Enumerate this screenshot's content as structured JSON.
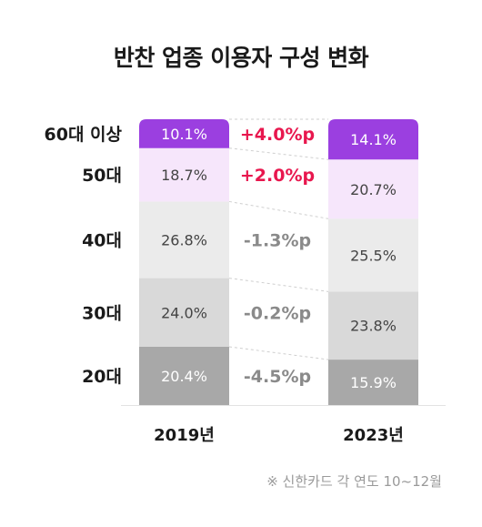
{
  "chart_data": {
    "type": "bar",
    "stacked": true,
    "title": "반찬 업종 이용자 구성 변화",
    "categories": [
      "2019년",
      "2023년"
    ],
    "series": [
      {
        "name": "20대",
        "values": [
          20.4,
          15.9
        ],
        "labels": [
          "20.4%",
          "15.9%"
        ],
        "change": "-4.5%p",
        "color": "#a8a8a8",
        "label_color": "#ffffff",
        "change_color": "#8a8a8a"
      },
      {
        "name": "30대",
        "values": [
          24.0,
          23.8
        ],
        "labels": [
          "24.0%",
          "23.8%"
        ],
        "change": "-0.2%p",
        "color": "#d9d9d9",
        "label_color": "#444444",
        "change_color": "#8a8a8a"
      },
      {
        "name": "40대",
        "values": [
          26.8,
          25.5
        ],
        "labels": [
          "26.8%",
          "25.5%"
        ],
        "change": "-1.3%p",
        "color": "#ebebeb",
        "label_color": "#444444",
        "change_color": "#8a8a8a"
      },
      {
        "name": "50대",
        "values": [
          18.7,
          20.7
        ],
        "labels": [
          "18.7%",
          "20.7%"
        ],
        "change": "+2.0%p",
        "color": "#f6e6fb",
        "label_color": "#444444",
        "change_color": "#e8174e"
      },
      {
        "name": "60대 이상",
        "values": [
          10.1,
          14.1
        ],
        "labels": [
          "10.1%",
          "14.1%"
        ],
        "change": "+4.0%p",
        "color": "#9b3fe0",
        "label_color": "#ffffff",
        "change_color": "#e8174e"
      }
    ],
    "ylim": [
      0,
      100
    ]
  },
  "source_note": "※ 신한카드 각 연도 10~12월"
}
